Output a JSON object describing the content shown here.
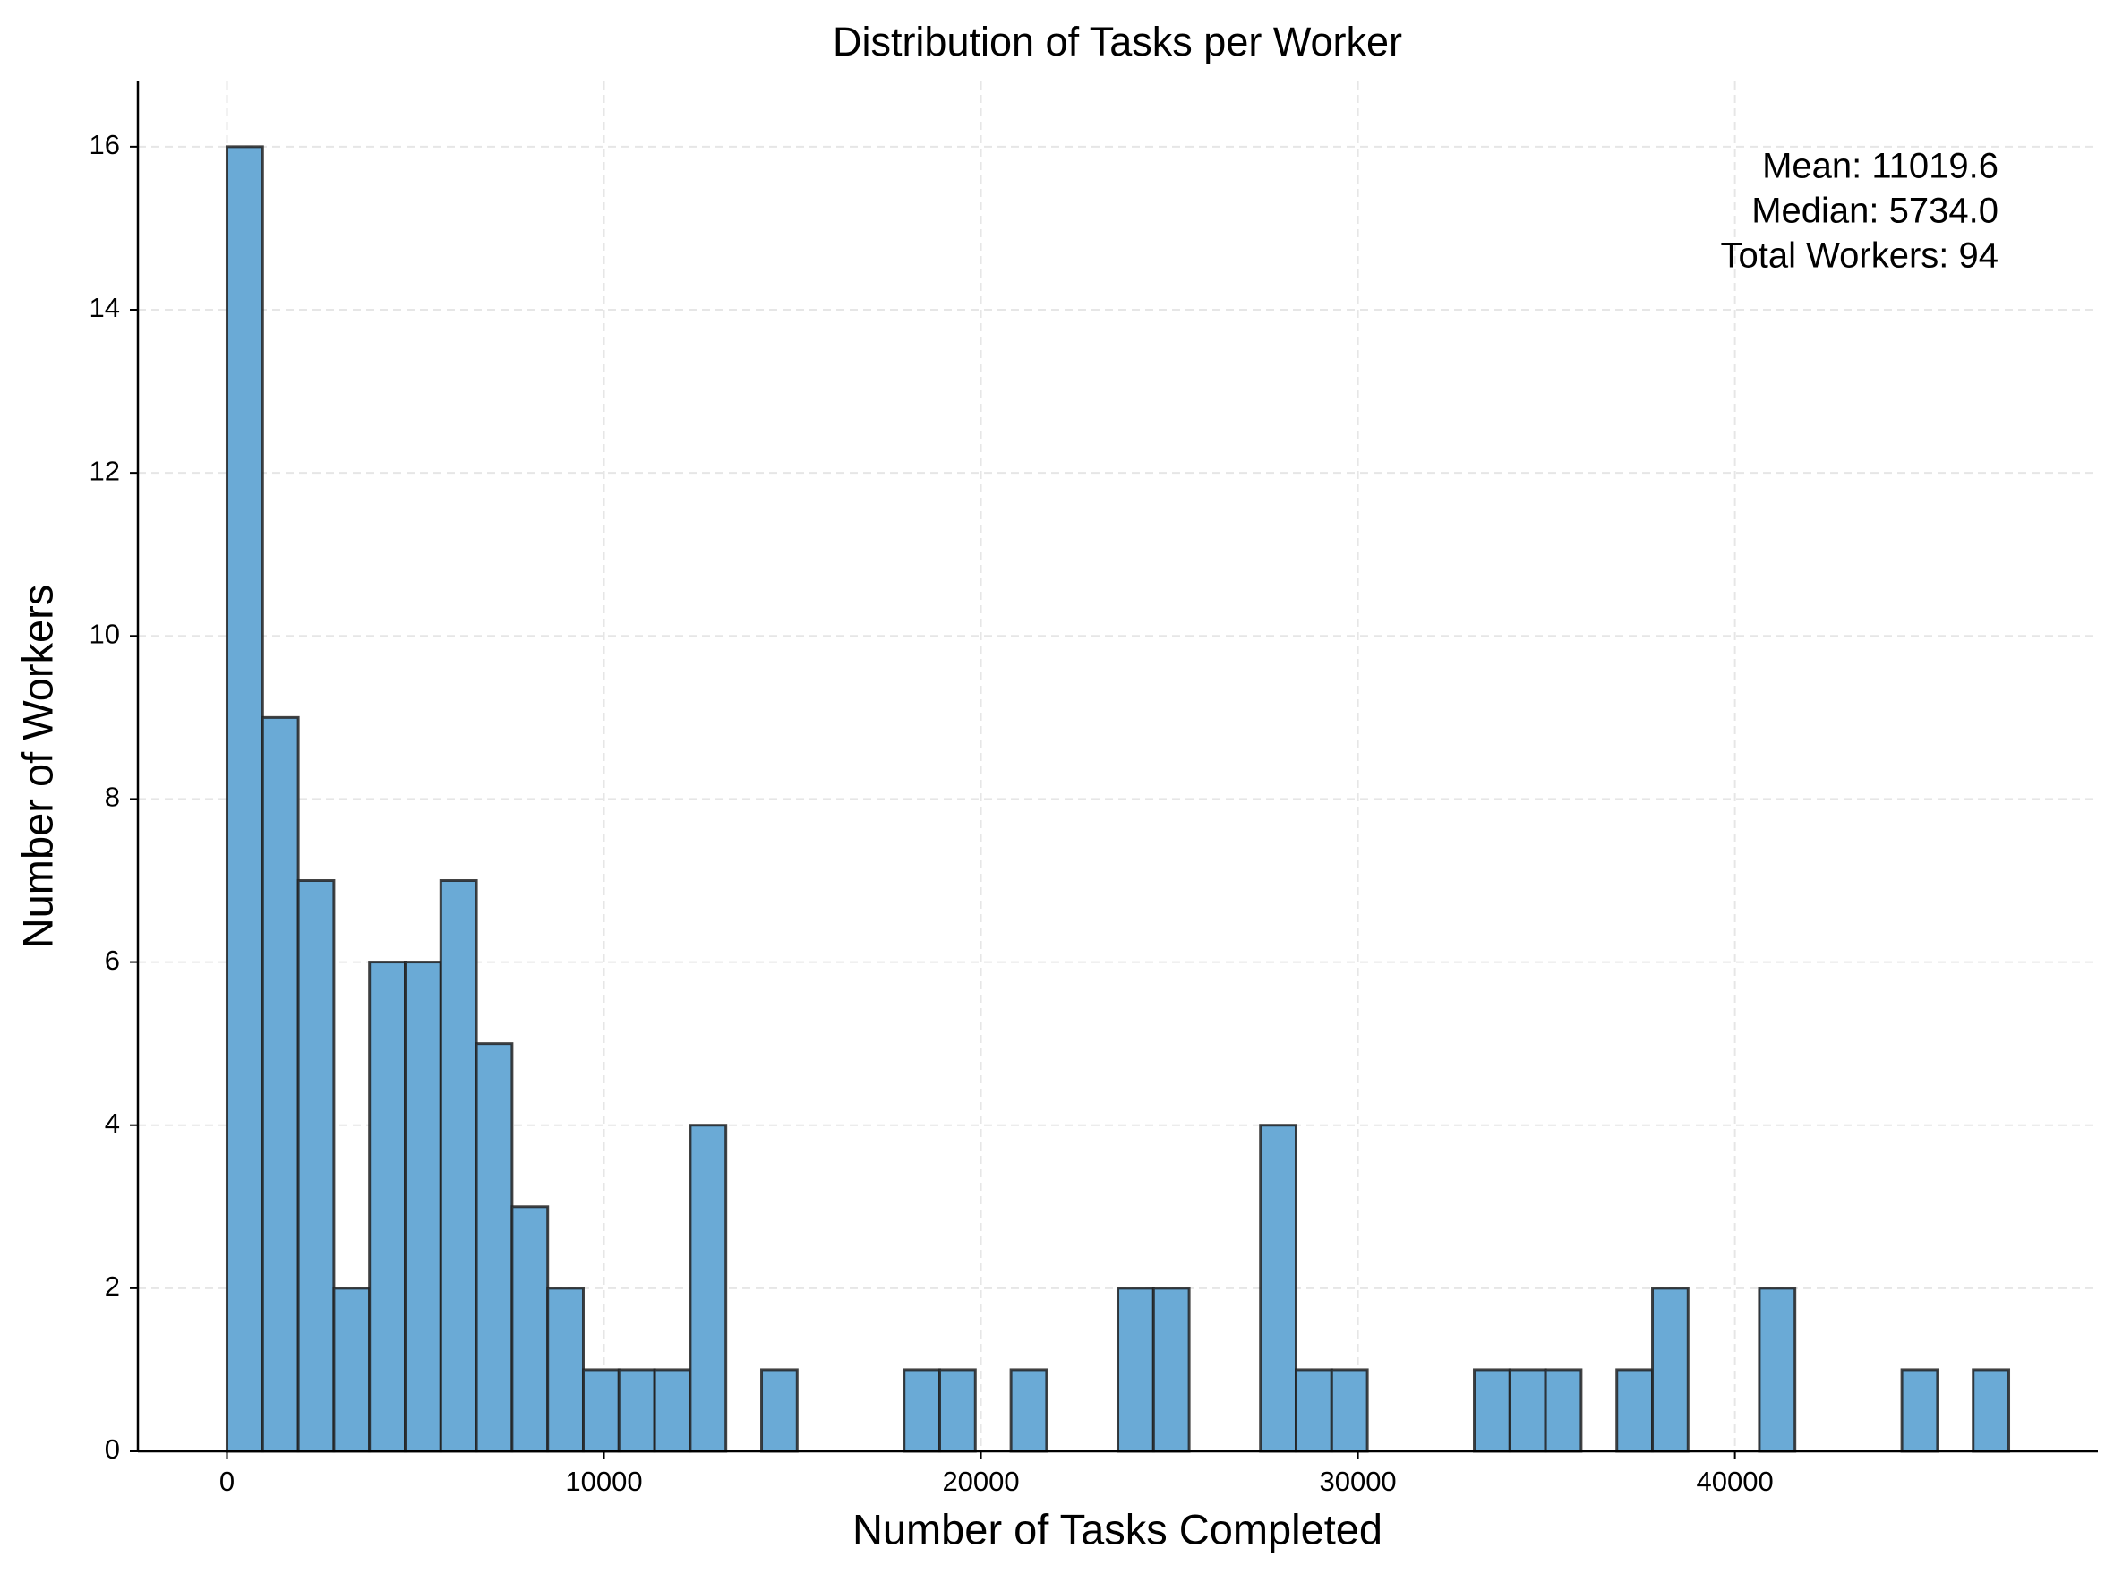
{
  "chart_data": {
    "type": "histogram",
    "title": "Distribution of Tasks per Worker",
    "x_label": "Number of Tasks Completed",
    "y_label": "Number of Workers",
    "annotation": [
      "Mean: 11019.6",
      "Median: 5734.0",
      "Total Workers: 94"
    ],
    "bins": [
      0,
      945,
      1891,
      2836,
      3781,
      4727,
      5672,
      6617,
      7562,
      8508,
      9453,
      10398,
      11344,
      12289,
      13234,
      14180,
      15125,
      16070,
      17015,
      17961,
      18906,
      19851,
      20797,
      21742,
      22687,
      23633,
      24578,
      25523,
      26468,
      27414,
      28359,
      29304,
      30250,
      31195,
      32140,
      33086,
      34031,
      34976,
      35921,
      36867,
      37812,
      38757,
      39703,
      40648,
      41593,
      42539,
      43484,
      44429,
      45374,
      46320,
      47265
    ],
    "values": [
      16,
      9,
      7,
      2,
      6,
      6,
      7,
      5,
      3,
      2,
      1,
      1,
      1,
      4,
      0,
      1,
      0,
      0,
      0,
      1,
      1,
      0,
      1,
      0,
      0,
      2,
      2,
      0,
      0,
      4,
      1,
      1,
      0,
      0,
      0,
      1,
      1,
      1,
      0,
      1,
      2,
      0,
      0,
      2,
      0,
      0,
      0,
      1,
      0,
      1
    ],
    "color": "#6aaad6",
    "edge_color": "#222222",
    "xlim": [
      -2363,
      49628
    ],
    "ylim": [
      0,
      16.8
    ],
    "xticks": [
      0,
      10000,
      20000,
      30000,
      40000
    ],
    "yticks": [
      0,
      2,
      4,
      6,
      8,
      10,
      12,
      14,
      16
    ],
    "grid": true
  }
}
